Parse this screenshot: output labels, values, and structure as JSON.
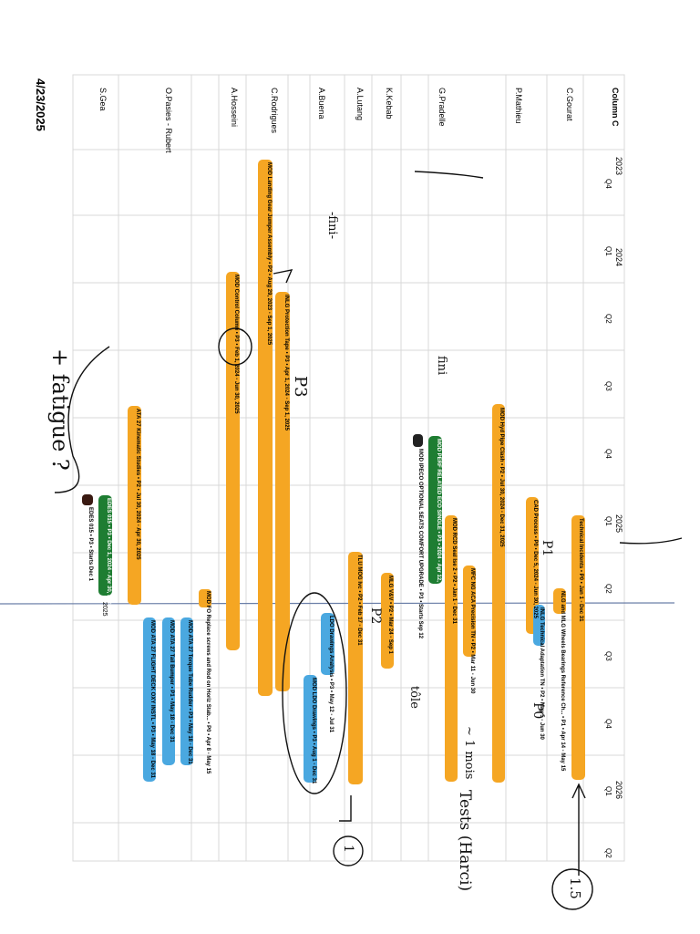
{
  "page": {
    "date": "4/23/2025",
    "column_header": "Column C"
  },
  "timeline": {
    "years": [
      "2023",
      "2024",
      "2025",
      "2026"
    ],
    "quarters": [
      "Q4",
      "Q1",
      "Q2",
      "Q3",
      "Q4",
      "Q1",
      "Q2",
      "Q3",
      "Q4",
      "Q1",
      "Q2"
    ],
    "today_label": "2025"
  },
  "rows": [
    {
      "name": "C.Gourat"
    },
    {
      "name": "P.Mathieu"
    },
    {
      "name": "G.Pradelle"
    },
    {
      "name": "K.Kebab"
    },
    {
      "name": "A.Lutang"
    },
    {
      "name": "A.Buena"
    },
    {
      "name": "C.Rodrigues"
    },
    {
      "name": "A.Hosseini"
    },
    {
      "name": "O.Pasies - Rubert"
    },
    {
      "name": "S.Gea"
    }
  ],
  "tasks": [
    {
      "label": "Technical Incidents • P0 • Jan 1 - Dec 31",
      "color": "#f5a623"
    },
    {
      "label": "NLG and MLG Wheels Bearings Reference Ch... • P1 • Apr 14 - May 15",
      "color": "#f5a623"
    },
    {
      "label": "CAD Process • P0 • Dec 5, 2024 - Jun 30, 2025",
      "color": "#f5a623"
    },
    {
      "label": "INLG Technical Adaptation TN • P2 • May 5 - Jun 30",
      "color": "#4aa8e0"
    },
    {
      "label": "MOD Hyd Pipe Clash • P2 • Jul 30, 2024 - Dec 31, 2025",
      "color": "#f5a623"
    },
    {
      "label": "MFC NG ACA Precision TN • P2 • Mar 11 - Jun 30",
      "color": "#f5a623"
    },
    {
      "label": "MOD RCD Seal Ise 2 • P2 • Jan 1 - Dec 31",
      "color": "#f5a623"
    },
    {
      "label": "MOD PERF RELATED ECO SINGLE • P3 • 2024 - Apr 12, 2025",
      "color": "#1e7d32"
    },
    {
      "label": "MOD IPECO OPTIONAL SEATS COMFORT UPGRADE • P3 • Starts Sep 12",
      "color": "#222222"
    },
    {
      "label": "MLG V&V • P2 • Mar 24 - Sep 1",
      "color": "#f5a623"
    },
    {
      "label": "TLU MOG Ivc • P2 • Feb 17 - Dec 31",
      "color": "#f5a623"
    },
    {
      "label": "LDO Drawings Analysis • P3 • May 12 - Jul 31",
      "color": "#4aa8e0"
    },
    {
      "label": "MOD LDO Drawings • P3 • Aug 1 - Dec 31",
      "color": "#4aa8e0"
    },
    {
      "label": "INLG Protection Tape • P3 • Apr 1, 2024 - Sep 1, 2025",
      "color": "#f5a623"
    },
    {
      "label": "MOD Landing Gear Jumper Assembly • P2 • Aug 29, 2023 - Sep 1, 2025",
      "color": "#f5a623"
    },
    {
      "label": "MOD Control Column • P3 • Feb 1, 2024 - Jun 30, 2025",
      "color": "#f5a623"
    },
    {
      "label": "MOD FO Replace screws and Rod on Horiz Stab... • P0 • Apr 8 - May 15",
      "color": "#f5a623"
    },
    {
      "label": "MOD ATA 27 Torque Tube Rudder • P3 • May 18 - Dec 31",
      "color": "#4aa8e0"
    },
    {
      "label": "MOD ATA 27 Tail Bumper • P1 • May 18 - Dec 31",
      "color": "#4aa8e0"
    },
    {
      "label": "MOD ATA 27 FLIGHT DECK OXY INSTL • P3 • May 18 - Dec 31",
      "color": "#4aa8e0"
    },
    {
      "label": "ATA 27 Kinematic Studies • P2 • Jul 30, 2024 - Apr 30, 2025",
      "color": "#f5a623"
    },
    {
      "label": "EDES 015 • P3 • Dec 1, 2024 - Apr 30, 2025",
      "color": "#1e7d32"
    },
    {
      "label": "EDES 015 • P3 • Starts Dec 1",
      "color": "#3a1a12"
    }
  ],
  "annotations": {
    "right_circled": "1.5",
    "right_text": "Tests (Harci)",
    "right_circled2": "1",
    "left_text": "+ fatigue ?",
    "p3_note": "P3",
    "p1_note": "P1",
    "p2_note": "P2",
    "p0_note": "P0",
    "mark1": "~ 1 mois",
    "mark2": "tôle",
    "mark3": "-fini-",
    "mark4": "fini"
  }
}
